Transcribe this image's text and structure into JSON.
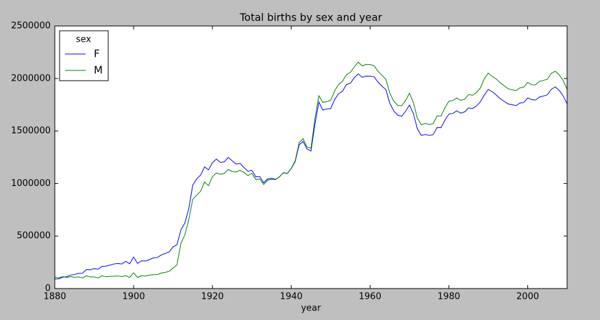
{
  "chart_data": {
    "type": "line",
    "title": "Total births by sex and year",
    "xlabel": "year",
    "x": [
      1880,
      1881,
      1882,
      1883,
      1884,
      1885,
      1886,
      1887,
      1888,
      1889,
      1890,
      1891,
      1892,
      1893,
      1894,
      1895,
      1896,
      1897,
      1898,
      1899,
      1900,
      1901,
      1902,
      1903,
      1904,
      1905,
      1906,
      1907,
      1908,
      1909,
      1910,
      1911,
      1912,
      1913,
      1914,
      1915,
      1916,
      1917,
      1918,
      1919,
      1920,
      1921,
      1922,
      1923,
      1924,
      1925,
      1926,
      1927,
      1928,
      1929,
      1930,
      1931,
      1932,
      1933,
      1934,
      1935,
      1936,
      1937,
      1938,
      1939,
      1940,
      1941,
      1942,
      1943,
      1944,
      1945,
      1946,
      1947,
      1948,
      1949,
      1950,
      1951,
      1952,
      1953,
      1954,
      1955,
      1956,
      1957,
      1958,
      1959,
      1960,
      1961,
      1962,
      1963,
      1964,
      1965,
      1966,
      1967,
      1968,
      1969,
      1970,
      1971,
      1972,
      1973,
      1974,
      1975,
      1976,
      1977,
      1978,
      1979,
      1980,
      1981,
      1982,
      1983,
      1984,
      1985,
      1986,
      1987,
      1988,
      1989,
      1990,
      1991,
      1992,
      1993,
      1994,
      1995,
      1996,
      1997,
      1998,
      1999,
      2000,
      2001,
      2002,
      2003,
      2004,
      2005,
      2006,
      2007,
      2008,
      2009,
      2010
    ],
    "series": [
      {
        "name": "F",
        "color": "#0000ff",
        "values": [
          91000,
          92000,
          108000,
          112000,
          129000,
          133000,
          145000,
          146000,
          179000,
          178000,
          190000,
          185000,
          212000,
          213000,
          223000,
          234000,
          238000,
          234000,
          259000,
          236000,
          300000,
          239000,
          264000,
          262000,
          275000,
          292000,
          295000,
          319000,
          334000,
          347000,
          396000,
          418000,
          558000,
          624000,
          761000,
          984000,
          1044000,
          1081000,
          1158000,
          1130000,
          1198000,
          1233000,
          1201000,
          1206000,
          1249000,
          1217000,
          1185000,
          1192000,
          1153000,
          1116000,
          1126000,
          1064000,
          1067000,
          1008000,
          1044000,
          1049000,
          1040000,
          1064000,
          1103000,
          1096000,
          1143000,
          1209000,
          1368000,
          1400000,
          1330000,
          1309000,
          1563000,
          1776000,
          1699000,
          1711000,
          1713000,
          1799000,
          1855000,
          1879000,
          1942000,
          1955000,
          2007000,
          2044000,
          2011000,
          2023000,
          2022000,
          2017000,
          1967000,
          1927000,
          1895000,
          1765000,
          1692000,
          1651000,
          1640000,
          1687000,
          1748000,
          1664000,
          1521000,
          1458000,
          1467000,
          1458000,
          1465000,
          1533000,
          1532000,
          1605000,
          1660000,
          1667000,
          1692000,
          1670000,
          1682000,
          1720000,
          1714000,
          1738000,
          1779000,
          1843000,
          1897000,
          1874000,
          1843000,
          1808000,
          1784000,
          1758000,
          1752000,
          1740000,
          1765000,
          1772000,
          1815000,
          1799000,
          1795000,
          1824000,
          1833000,
          1845000,
          1898000,
          1919000,
          1887000,
          1833000,
          1759000
        ]
      },
      {
        "name": "M",
        "color": "#008000",
        "values": [
          110000,
          101000,
          114000,
          105000,
          114000,
          108000,
          111000,
          101000,
          121000,
          111000,
          111000,
          101000,
          122000,
          112000,
          116000,
          117000,
          120000,
          113000,
          123000,
          106000,
          150000,
          106000,
          123000,
          119000,
          128000,
          132000,
          133000,
          147000,
          154000,
          164000,
          194000,
          226000,
          430000,
          512000,
          655000,
          849000,
          890000,
          926000,
          1014000,
          980000,
          1064000,
          1101000,
          1088000,
          1096000,
          1133000,
          1116000,
          1110000,
          1126000,
          1107000,
          1075000,
          1097000,
          1039000,
          1044000,
          991000,
          1032000,
          1041000,
          1037000,
          1064000,
          1102000,
          1095000,
          1145000,
          1217000,
          1388000,
          1426000,
          1349000,
          1336000,
          1616000,
          1836000,
          1773000,
          1779000,
          1791000,
          1881000,
          1944000,
          1973000,
          2036000,
          2059000,
          2111000,
          2155000,
          2120000,
          2134000,
          2132000,
          2123000,
          2069000,
          2031000,
          1993000,
          1862000,
          1784000,
          1744000,
          1739000,
          1789000,
          1860000,
          1769000,
          1622000,
          1559000,
          1573000,
          1562000,
          1570000,
          1643000,
          1642000,
          1722000,
          1783000,
          1790000,
          1814000,
          1792000,
          1803000,
          1847000,
          1840000,
          1866000,
          1911000,
          1999000,
          2052000,
          2019000,
          1996000,
          1960000,
          1931000,
          1903000,
          1893000,
          1884000,
          1910000,
          1918000,
          1963000,
          1941000,
          1940000,
          1974000,
          1982000,
          1993000,
          2050000,
          2069000,
          2035000,
          1979000,
          1898000
        ]
      }
    ],
    "xlim": [
      1880,
      2010
    ],
    "xticks": [
      1880,
      1900,
      1920,
      1940,
      1960,
      1980,
      2000
    ],
    "ylim": [
      0,
      2500000
    ],
    "yticks": [
      0,
      500000,
      1000000,
      1500000,
      2000000,
      2500000
    ],
    "legend_title": "sex",
    "legend": "upper left",
    "grid": false
  }
}
